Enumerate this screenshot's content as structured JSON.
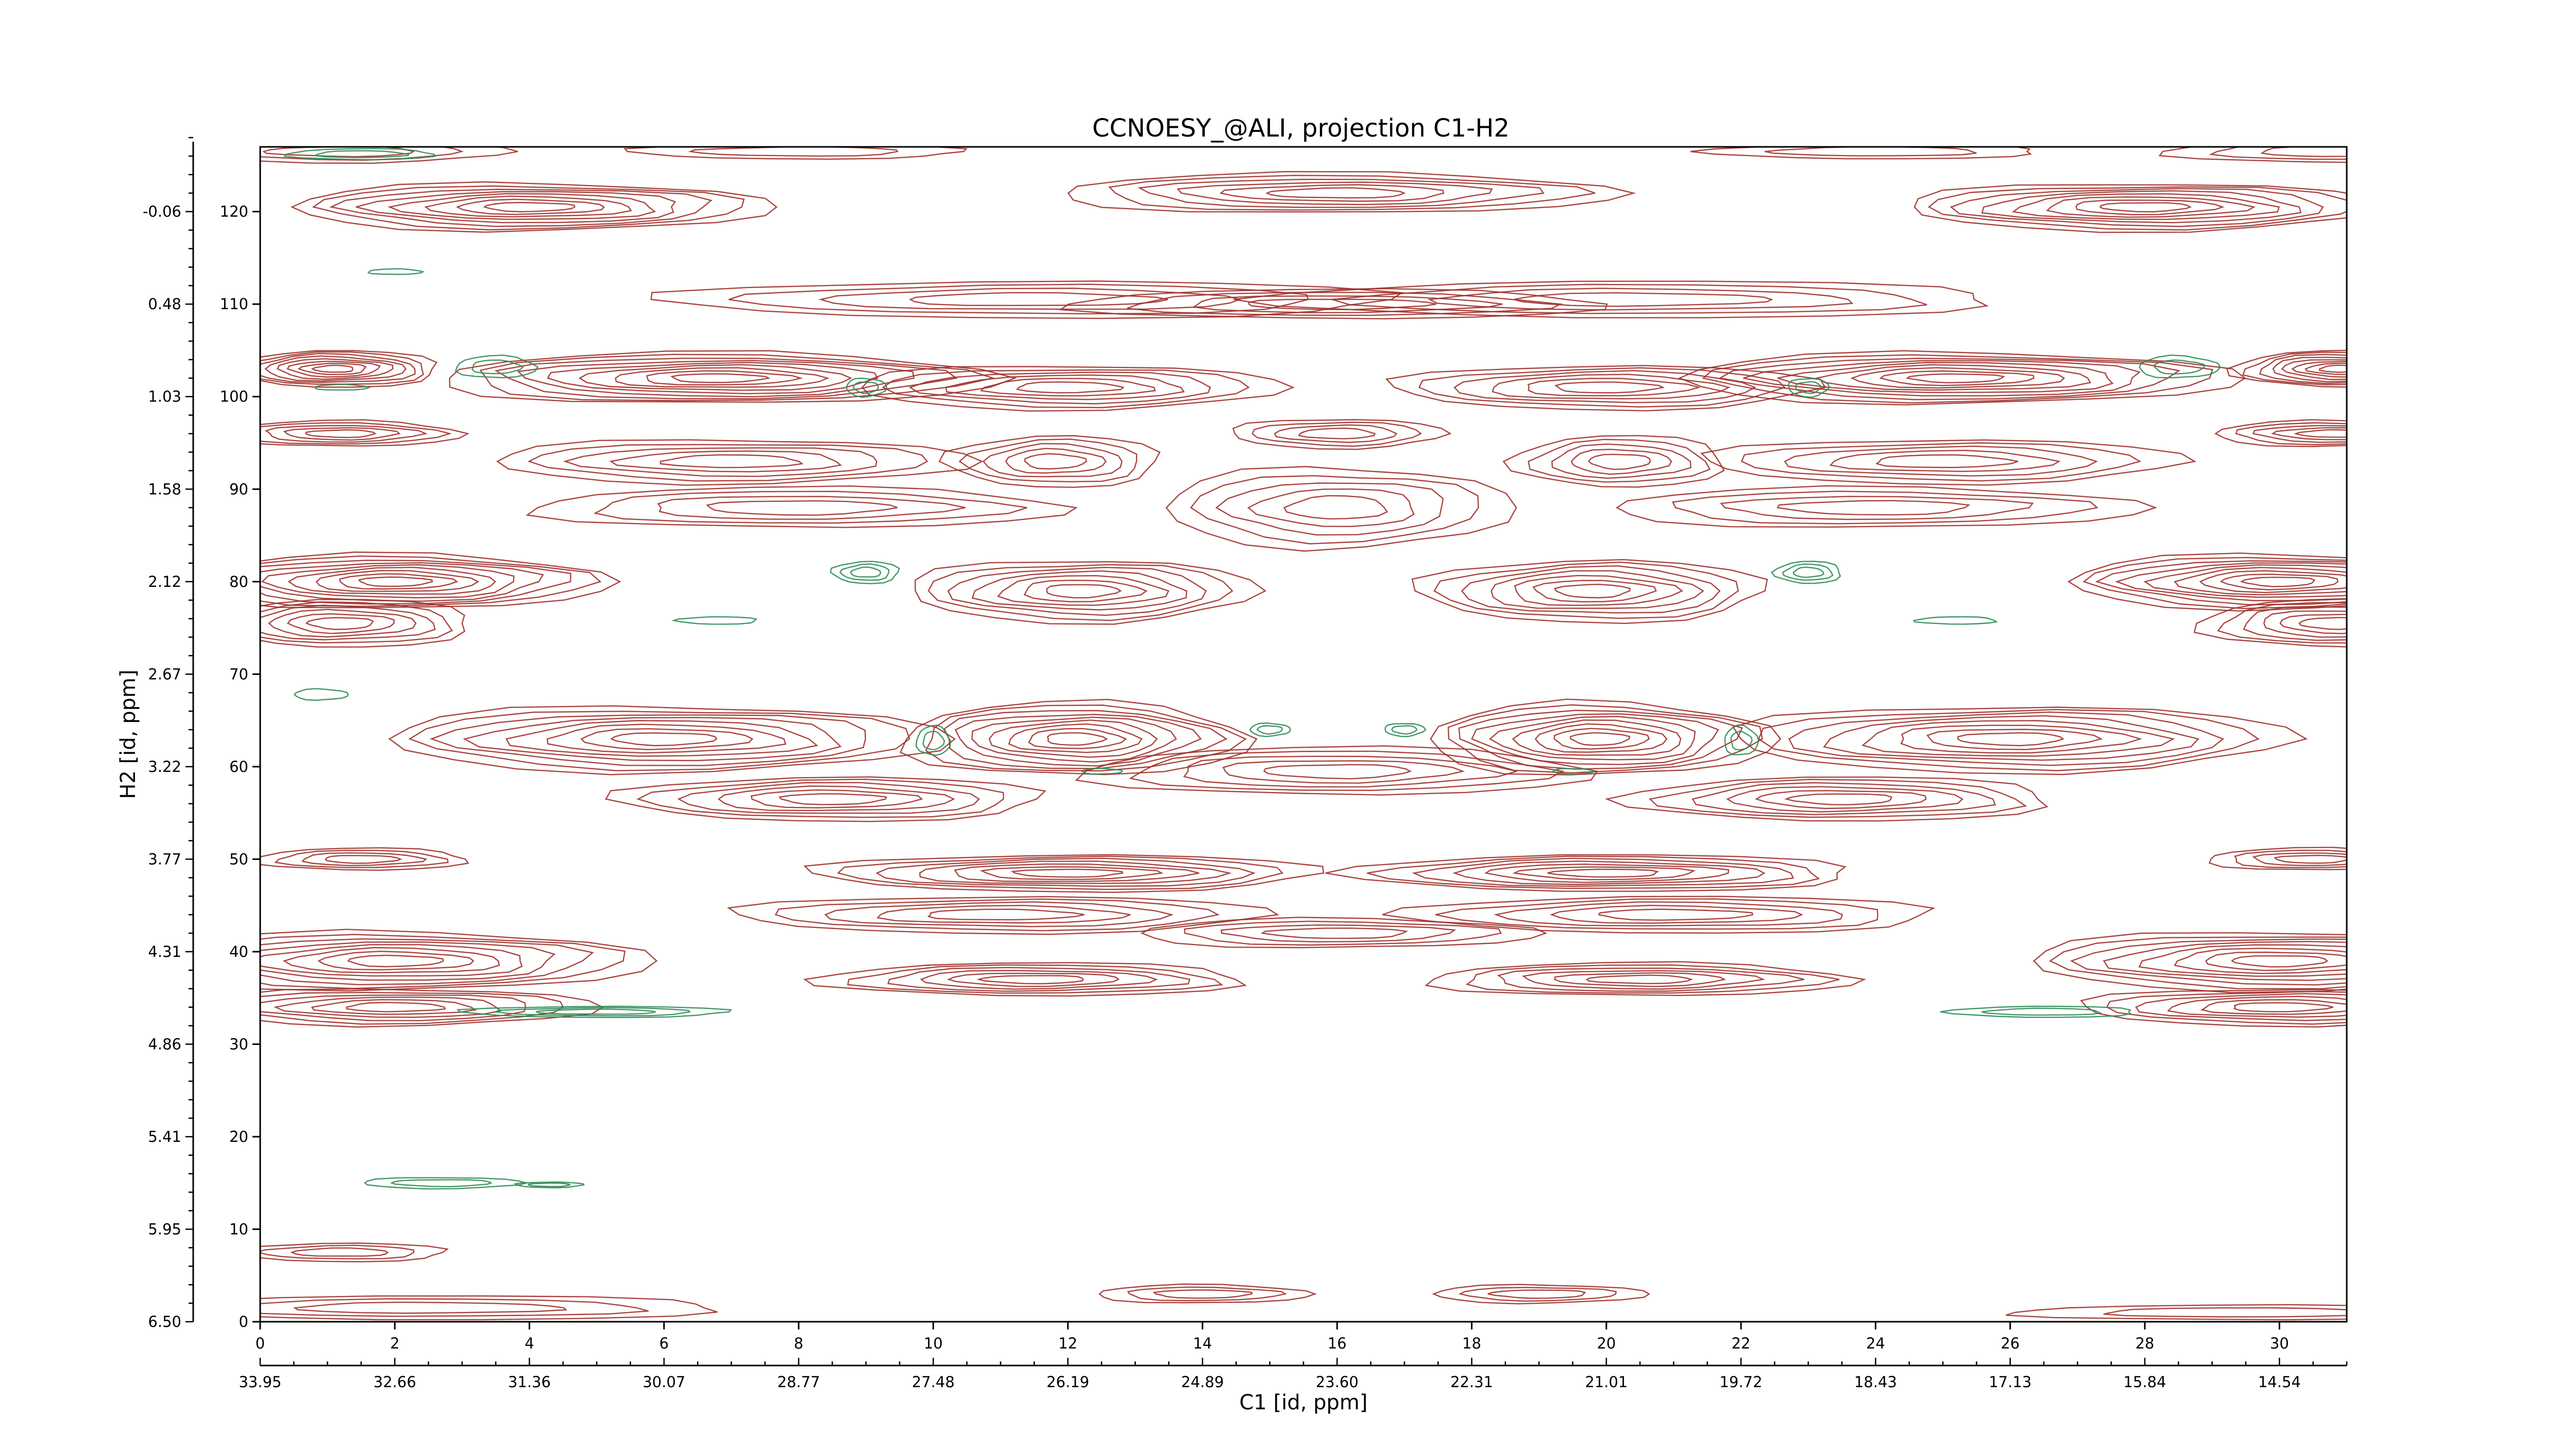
{
  "chart_data": {
    "type": "contour",
    "title": "CCNOESY_@ALI, projection C1-H2",
    "xlabel": "C1 [id, ppm]",
    "ylabel": "H2 [id, ppm]",
    "xlim": [
      0,
      31
    ],
    "ylim": [
      0,
      127
    ],
    "x_ticks": [
      0,
      2,
      4,
      6,
      8,
      10,
      12,
      14,
      16,
      18,
      20,
      22,
      24,
      26,
      28,
      30
    ],
    "y_ticks": [
      0,
      10,
      20,
      30,
      40,
      50,
      60,
      70,
      80,
      90,
      100,
      110,
      120
    ],
    "x_ppm_labels": [
      "33.95",
      "32.66",
      "31.36",
      "30.07",
      "28.77",
      "27.48",
      "26.19",
      "24.89",
      "23.60",
      "22.31",
      "21.01",
      "19.72",
      "18.43",
      "17.13",
      "15.84",
      "14.54"
    ],
    "y_ppm_labels": [
      "6.50",
      "5.95",
      "5.41",
      "4.86",
      "4.31",
      "3.77",
      "3.22",
      "2.67",
      "2.12",
      "1.58",
      "1.03",
      "0.48",
      "-0.06"
    ],
    "colors": {
      "positive": "#a0302a",
      "negative": "#2e8b57"
    },
    "positive_peaks": [
      {
        "x": 12.1,
        "y": 63,
        "rx": 2.6,
        "ry": 4.0,
        "levels": 9
      },
      {
        "x": 19.9,
        "y": 63,
        "rx": 2.6,
        "ry": 4.0,
        "levels": 9
      },
      {
        "x": 6.0,
        "y": 63,
        "rx": 4.2,
        "ry": 3.6,
        "levels": 8
      },
      {
        "x": 26.0,
        "y": 63,
        "rx": 4.2,
        "ry": 3.6,
        "levels": 8
      },
      {
        "x": 8.5,
        "y": 56.5,
        "rx": 3.2,
        "ry": 2.4,
        "levels": 6
      },
      {
        "x": 23.5,
        "y": 56.5,
        "rx": 3.2,
        "ry": 2.4,
        "levels": 6
      },
      {
        "x": 16.0,
        "y": 59.5,
        "rx": 3.8,
        "ry": 2.6,
        "levels": 5
      },
      {
        "x": 2.0,
        "y": 80,
        "rx": 3.2,
        "ry": 3.0,
        "levels": 9
      },
      {
        "x": 30.0,
        "y": 80,
        "rx": 3.2,
        "ry": 3.0,
        "levels": 9
      },
      {
        "x": 12.2,
        "y": 79,
        "rx": 2.6,
        "ry": 3.4,
        "levels": 7
      },
      {
        "x": 19.8,
        "y": 79,
        "rx": 2.6,
        "ry": 3.4,
        "levels": 7
      },
      {
        "x": 1.2,
        "y": 75.5,
        "rx": 2.0,
        "ry": 2.6,
        "levels": 6
      },
      {
        "x": 30.8,
        "y": 75.5,
        "rx": 2.0,
        "ry": 2.6,
        "levels": 6
      },
      {
        "x": 6.8,
        "y": 102,
        "rx": 4.2,
        "ry": 2.8,
        "levels": 9
      },
      {
        "x": 25.2,
        "y": 102,
        "rx": 4.2,
        "ry": 2.8,
        "levels": 9
      },
      {
        "x": 12.0,
        "y": 101,
        "rx": 3.2,
        "ry": 2.4,
        "levels": 6
      },
      {
        "x": 20.0,
        "y": 101,
        "rx": 3.2,
        "ry": 2.4,
        "levels": 6
      },
      {
        "x": 1.1,
        "y": 103,
        "rx": 1.6,
        "ry": 2.0,
        "levels": 8
      },
      {
        "x": 30.9,
        "y": 103,
        "rx": 1.6,
        "ry": 2.0,
        "levels": 8
      },
      {
        "x": 1.2,
        "y": 96,
        "rx": 1.8,
        "ry": 1.4,
        "levels": 5
      },
      {
        "x": 30.8,
        "y": 96,
        "rx": 1.8,
        "ry": 1.4,
        "levels": 5
      },
      {
        "x": 7.0,
        "y": 93,
        "rx": 3.6,
        "ry": 2.4,
        "levels": 5
      },
      {
        "x": 25.0,
        "y": 93,
        "rx": 3.6,
        "ry": 2.4,
        "levels": 5
      },
      {
        "x": 11.8,
        "y": 93,
        "rx": 1.6,
        "ry": 2.8,
        "levels": 5
      },
      {
        "x": 20.2,
        "y": 93,
        "rx": 1.6,
        "ry": 2.8,
        "levels": 5
      },
      {
        "x": 8.0,
        "y": 88,
        "rx": 4.0,
        "ry": 2.2,
        "levels": 4
      },
      {
        "x": 24.0,
        "y": 88,
        "rx": 4.0,
        "ry": 2.2,
        "levels": 4
      },
      {
        "x": 16.0,
        "y": 88,
        "rx": 2.6,
        "ry": 4.4,
        "levels": 5
      },
      {
        "x": 16.0,
        "y": 96,
        "rx": 1.6,
        "ry": 1.6,
        "levels": 4
      },
      {
        "x": 11.5,
        "y": 110.5,
        "rx": 5.5,
        "ry": 2.0,
        "levels": 4
      },
      {
        "x": 20.5,
        "y": 110.5,
        "rx": 5.5,
        "ry": 2.0,
        "levels": 4
      },
      {
        "x": 16.0,
        "y": 110,
        "rx": 4.0,
        "ry": 1.6,
        "levels": 4
      },
      {
        "x": 16.0,
        "y": 122,
        "rx": 4.2,
        "ry": 2.2,
        "levels": 6
      },
      {
        "x": 4.0,
        "y": 120.5,
        "rx": 3.6,
        "ry": 2.6,
        "levels": 8
      },
      {
        "x": 28.0,
        "y": 120.5,
        "rx": 3.6,
        "ry": 2.6,
        "levels": 8
      },
      {
        "x": 12.0,
        "y": 48.5,
        "rx": 3.8,
        "ry": 2.0,
        "levels": 7
      },
      {
        "x": 20.0,
        "y": 48.5,
        "rx": 3.8,
        "ry": 2.0,
        "levels": 7
      },
      {
        "x": 1.5,
        "y": 50,
        "rx": 1.6,
        "ry": 1.2,
        "levels": 4
      },
      {
        "x": 30.5,
        "y": 50,
        "rx": 1.6,
        "ry": 1.2,
        "levels": 4
      },
      {
        "x": 2.0,
        "y": 39,
        "rx": 3.8,
        "ry": 3.2,
        "levels": 8
      },
      {
        "x": 30.0,
        "y": 39,
        "rx": 3.8,
        "ry": 3.2,
        "levels": 8
      },
      {
        "x": 11.0,
        "y": 44,
        "rx": 4.0,
        "ry": 2.0,
        "levels": 5
      },
      {
        "x": 21.0,
        "y": 44,
        "rx": 4.0,
        "ry": 2.0,
        "levels": 5
      },
      {
        "x": 11.5,
        "y": 37,
        "rx": 3.2,
        "ry": 1.8,
        "levels": 6
      },
      {
        "x": 20.5,
        "y": 37,
        "rx": 3.2,
        "ry": 1.8,
        "levels": 6
      },
      {
        "x": 16.0,
        "y": 42,
        "rx": 3.0,
        "ry": 1.6,
        "levels": 4
      },
      {
        "x": 2.0,
        "y": 34,
        "rx": 3.0,
        "ry": 2.0,
        "levels": 6
      },
      {
        "x": 30.0,
        "y": 34,
        "rx": 3.0,
        "ry": 2.0,
        "levels": 6
      },
      {
        "x": 1.2,
        "y": 7.5,
        "rx": 1.6,
        "ry": 1.0,
        "levels": 3
      },
      {
        "x": 2.5,
        "y": 1.5,
        "rx": 4.5,
        "ry": 1.3,
        "levels": 3
      },
      {
        "x": 29.5,
        "y": 1.0,
        "rx": 3.5,
        "ry": 0.8,
        "levels": 2
      },
      {
        "x": 14.0,
        "y": 3.0,
        "rx": 1.6,
        "ry": 1.0,
        "levels": 3
      },
      {
        "x": 19.0,
        "y": 3.0,
        "rx": 1.6,
        "ry": 1.0,
        "levels": 3
      },
      {
        "x": 1.2,
        "y": 126.5,
        "rx": 2.5,
        "ry": 1.2,
        "levels": 3
      },
      {
        "x": 8.0,
        "y": 126.5,
        "rx": 2.5,
        "ry": 0.8,
        "levels": 2
      },
      {
        "x": 24.0,
        "y": 126.5,
        "rx": 2.5,
        "ry": 0.8,
        "levels": 2
      },
      {
        "x": 30.8,
        "y": 126.5,
        "rx": 2.5,
        "ry": 1.2,
        "levels": 3
      }
    ],
    "negative_peaks": [
      {
        "x": 3.5,
        "y": 103.2,
        "rx": 0.6,
        "ry": 1.2,
        "levels": 2
      },
      {
        "x": 28.5,
        "y": 103.2,
        "rx": 0.6,
        "ry": 1.2,
        "levels": 2
      },
      {
        "x": 9.0,
        "y": 101,
        "rx": 0.3,
        "ry": 1.0,
        "levels": 2
      },
      {
        "x": 23.0,
        "y": 101,
        "rx": 0.3,
        "ry": 1.0,
        "levels": 2
      },
      {
        "x": 9.0,
        "y": 81,
        "rx": 0.5,
        "ry": 1.2,
        "levels": 3
      },
      {
        "x": 23.0,
        "y": 81,
        "rx": 0.5,
        "ry": 1.2,
        "levels": 3
      },
      {
        "x": 10.0,
        "y": 62.8,
        "rx": 0.25,
        "ry": 1.6,
        "levels": 2
      },
      {
        "x": 22.0,
        "y": 62.8,
        "rx": 0.25,
        "ry": 1.6,
        "levels": 2
      },
      {
        "x": 15.0,
        "y": 64.0,
        "rx": 0.3,
        "ry": 0.7,
        "levels": 2
      },
      {
        "x": 17.0,
        "y": 64.0,
        "rx": 0.3,
        "ry": 0.7,
        "levels": 2
      },
      {
        "x": 5.0,
        "y": 33.5,
        "rx": 2.0,
        "ry": 0.6,
        "levels": 3
      },
      {
        "x": 26.5,
        "y": 33.5,
        "rx": 1.4,
        "ry": 0.6,
        "levels": 2
      },
      {
        "x": 1.5,
        "y": 126.2,
        "rx": 1.1,
        "ry": 0.6,
        "levels": 2
      },
      {
        "x": 1.2,
        "y": 101.0,
        "rx": 0.4,
        "ry": 0.3,
        "levels": 1
      },
      {
        "x": 0.9,
        "y": 67.8,
        "rx": 0.4,
        "ry": 0.6,
        "levels": 1
      },
      {
        "x": 2.7,
        "y": 15.0,
        "rx": 1.2,
        "ry": 0.6,
        "levels": 2
      },
      {
        "x": 4.3,
        "y": 14.8,
        "rx": 0.5,
        "ry": 0.3,
        "levels": 2
      },
      {
        "x": 6.8,
        "y": 75.8,
        "rx": 0.6,
        "ry": 0.4,
        "levels": 1
      },
      {
        "x": 25.2,
        "y": 75.8,
        "rx": 0.6,
        "ry": 0.4,
        "levels": 1
      },
      {
        "x": 2.0,
        "y": 113.5,
        "rx": 0.4,
        "ry": 0.3,
        "levels": 1
      },
      {
        "x": 12.5,
        "y": 59.5,
        "rx": 0.3,
        "ry": 0.3,
        "levels": 1
      },
      {
        "x": 19.5,
        "y": 59.5,
        "rx": 0.3,
        "ry": 0.3,
        "levels": 1
      }
    ]
  }
}
